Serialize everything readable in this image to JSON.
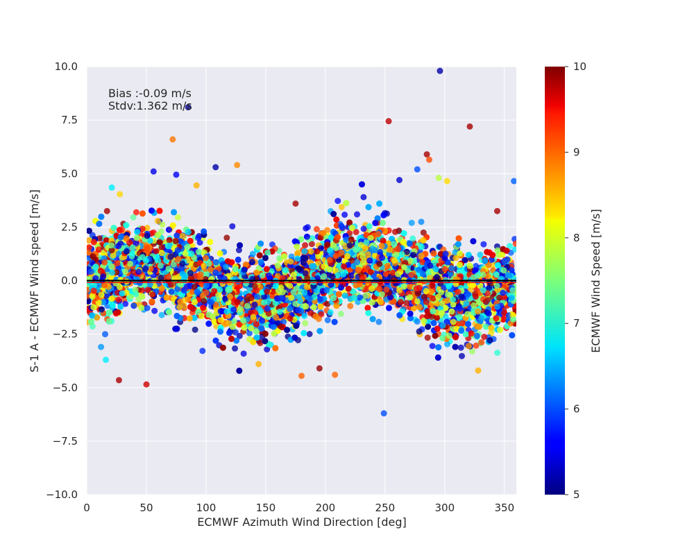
{
  "chart_data": {
    "type": "scatter",
    "title": "",
    "xlabel": "ECMWF Azimuth Wind Direction [deg]",
    "ylabel": "S-1 A - ECMWF Wind speed [m/s]",
    "xlim": [
      0,
      360
    ],
    "ylim": [
      -10,
      10
    ],
    "x_ticks": [
      0,
      50,
      100,
      150,
      200,
      250,
      300,
      350
    ],
    "y_ticks": [
      -10.0,
      -7.5,
      -5.0,
      -2.5,
      0.0,
      2.5,
      5.0,
      7.5,
      10.0
    ],
    "x_tick_labels": [
      "0",
      "50",
      "100",
      "150",
      "200",
      "250",
      "300",
      "350"
    ],
    "y_tick_labels": [
      "−10.0",
      "−7.5",
      "−5.0",
      "−2.5",
      "0.0",
      "2.5",
      "5.0",
      "7.5",
      "10.0"
    ],
    "grid": true,
    "background": "#eaeaf2",
    "colormap": "jet",
    "colorbar": {
      "label": "ECMWF Wind Speed [m/s]",
      "range": [
        5,
        10
      ],
      "ticks": [
        "5",
        "6",
        "7",
        "8",
        "9",
        "10"
      ]
    },
    "annotations": {
      "bias": "Bias :-0.09 m/s",
      "stdv": "Stdv:1.362 m/s"
    },
    "reference_line": {
      "y": 0,
      "color": "#000000"
    },
    "bias_line": {
      "y": -0.09,
      "color": "#ff0000"
    },
    "stats": {
      "bias": -0.09,
      "stdv": 1.362
    },
    "n_points_approx": 6000,
    "noise_model": {
      "amplitude": 1.0,
      "phase_deg": 50,
      "harmonic": 2,
      "std_base": 1.05
    },
    "points": [
      {
        "x": 296,
        "y": 9.8,
        "c": 5.2
      },
      {
        "x": 85,
        "y": 8.1,
        "c": 5.1
      },
      {
        "x": 253,
        "y": 7.45,
        "c": 9.7
      },
      {
        "x": 321,
        "y": 7.2,
        "c": 9.8
      },
      {
        "x": 72,
        "y": 6.6,
        "c": 8.8
      },
      {
        "x": 285,
        "y": 5.9,
        "c": 9.8
      },
      {
        "x": 126,
        "y": 5.4,
        "c": 8.7
      },
      {
        "x": 108,
        "y": 5.3,
        "c": 5.2
      },
      {
        "x": 56,
        "y": 5.1,
        "c": 5.5
      },
      {
        "x": 277,
        "y": 5.2,
        "c": 6.0
      },
      {
        "x": 287,
        "y": 5.65,
        "c": 9.0
      },
      {
        "x": 75,
        "y": 4.95,
        "c": 5.6
      },
      {
        "x": 358,
        "y": 4.65,
        "c": 6.1
      },
      {
        "x": 262,
        "y": 4.7,
        "c": 5.4
      },
      {
        "x": 21,
        "y": 4.35,
        "c": 6.8
      },
      {
        "x": 92,
        "y": 4.45,
        "c": 8.5
      },
      {
        "x": 27,
        "y": -4.65,
        "c": 9.8
      },
      {
        "x": 50,
        "y": -4.85,
        "c": 9.6
      },
      {
        "x": 249,
        "y": -6.2,
        "c": 6.0
      },
      {
        "x": 180,
        "y": -4.45,
        "c": 8.9
      },
      {
        "x": 208,
        "y": -4.4,
        "c": 8.9
      },
      {
        "x": 328,
        "y": -4.2,
        "c": 8.5
      },
      {
        "x": 195,
        "y": -4.1,
        "c": 9.9
      },
      {
        "x": 144,
        "y": -3.9,
        "c": 8.5
      },
      {
        "x": 16,
        "y": -3.7,
        "c": 6.8
      },
      {
        "x": 344,
        "y": 3.25,
        "c": 9.8
      },
      {
        "x": 17,
        "y": 3.25,
        "c": 9.8
      },
      {
        "x": 175,
        "y": 3.6,
        "c": 9.8
      },
      {
        "x": 302,
        "y": 4.65,
        "c": 8.3
      },
      {
        "x": 295,
        "y": 4.8,
        "c": 7.8
      },
      {
        "x": 232,
        "y": 3.9,
        "c": 5.4
      }
    ]
  }
}
